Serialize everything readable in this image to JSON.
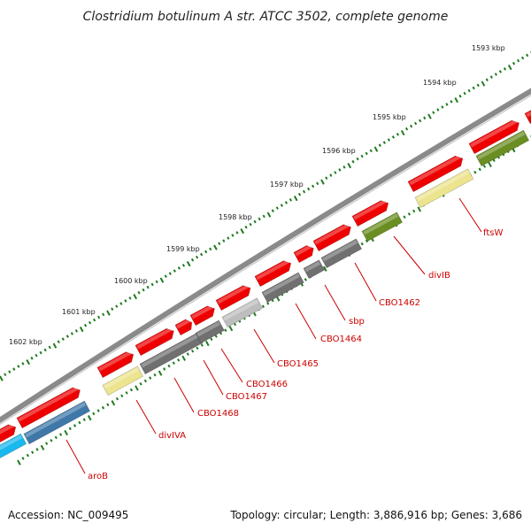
{
  "header": {
    "title": "Clostridium botulinum A str. ATCC 3502, complete genome"
  },
  "footer": {
    "accession": "Accession: NC_009495",
    "topology": "Topology: circular; Length: 3,886,916 bp; Genes: 3,686"
  },
  "ruler": {
    "ticks": [
      "1593 kbp",
      "1594 kbp",
      "1595 kbp",
      "1596 kbp",
      "1597 kbp",
      "1598 kbp",
      "1599 kbp",
      "1600 kbp",
      "1601 kbp",
      "1602 kbp"
    ]
  },
  "colors": {
    "forward_gene": "#ee0000",
    "backbone": "#8a8a8a",
    "tick": "#1f7a1f",
    "label": "#cc0000",
    "yellow": "#ece48e",
    "olive": "#6a8e22",
    "gray": "#707070",
    "light_gray": "#bdbdbd",
    "steel_blue": "#3f78a8",
    "cyan": "#19b8ee"
  },
  "gene_labels": [
    "ftsW",
    "divIB",
    "CBO1462",
    "sbp",
    "CBO1464",
    "CBO1465",
    "CBO1466",
    "CBO1467",
    "CBO1468",
    "divIVA",
    "aroB"
  ]
}
